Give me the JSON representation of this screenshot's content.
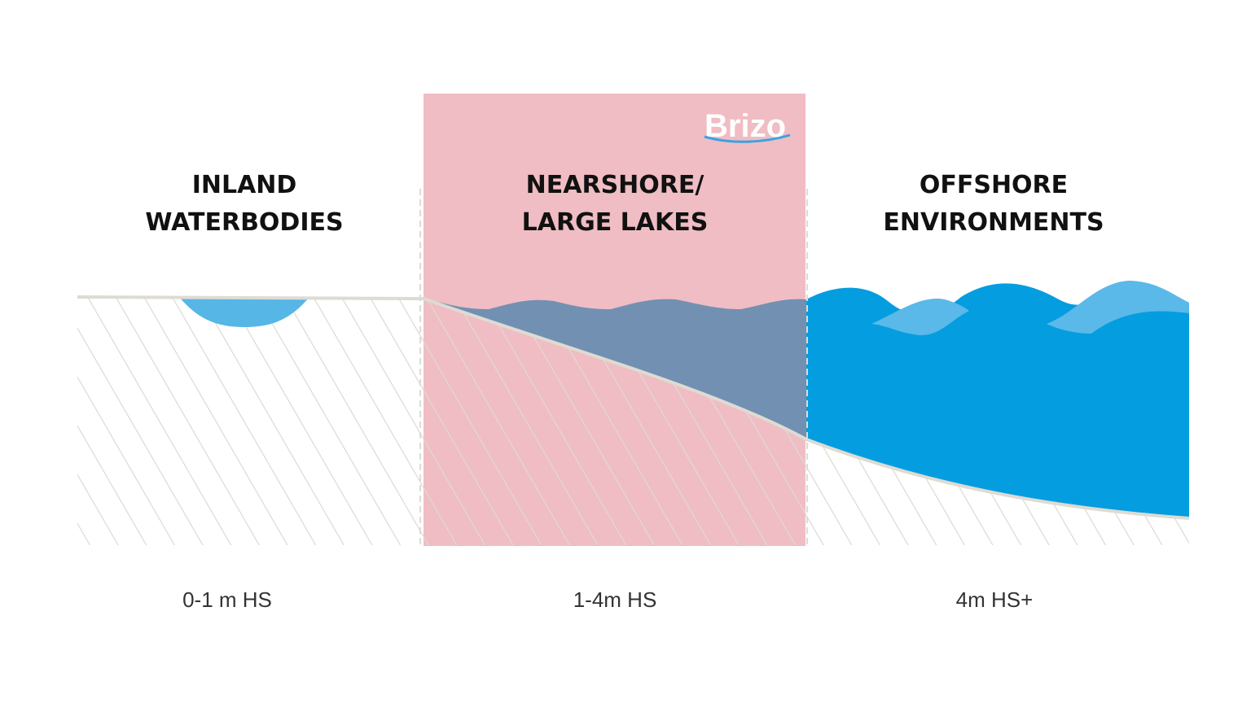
{
  "logo": "Brizo",
  "zones": [
    {
      "title_lines": [
        "INLAND",
        "WATERBODIES"
      ],
      "label": "0-1 m HS"
    },
    {
      "title_lines": [
        "NEARSHORE/",
        "LARGE LAKES"
      ],
      "label": "1-4m HS"
    },
    {
      "title_lines": [
        "OFFSHORE",
        "ENVIRONMENTS"
      ],
      "label": "4m HS+"
    }
  ]
}
